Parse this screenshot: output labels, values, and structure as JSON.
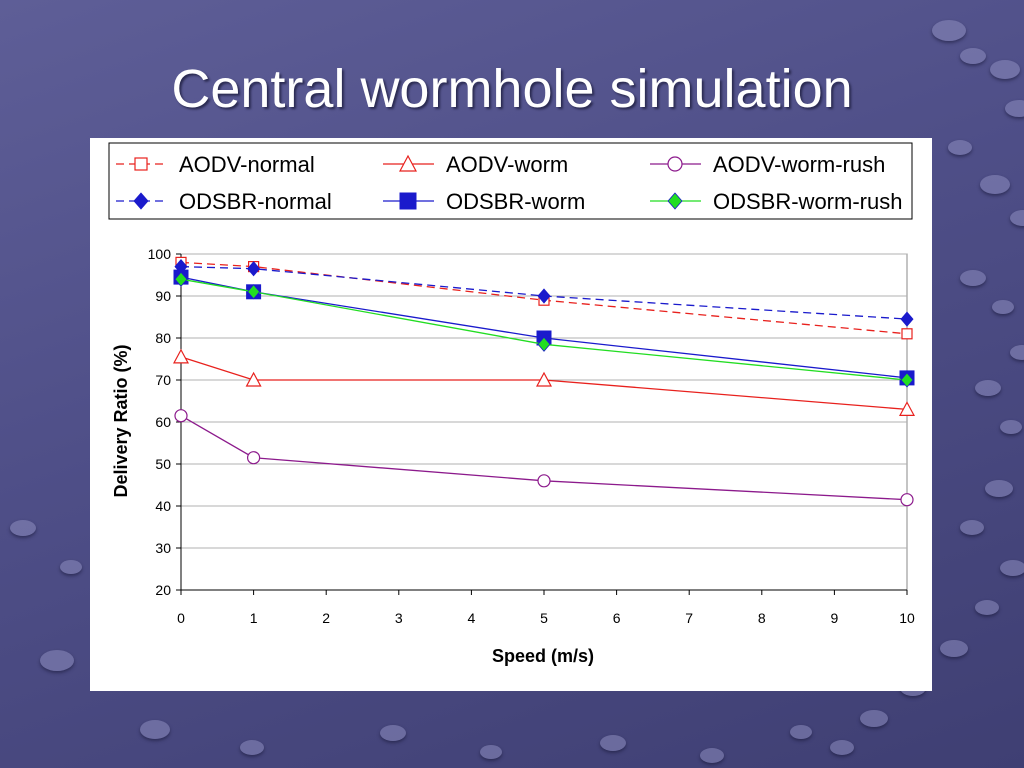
{
  "slide": {
    "title": "Central wormhole simulation"
  },
  "chart_data": {
    "type": "line",
    "title": "",
    "xlabel": "Speed (m/s)",
    "ylabel": "Delivery Ratio (%)",
    "xlim": [
      0,
      10
    ],
    "ylim": [
      20,
      100
    ],
    "xticks": [
      0,
      1,
      2,
      3,
      4,
      5,
      6,
      7,
      8,
      9,
      10
    ],
    "yticks": [
      20,
      30,
      40,
      50,
      60,
      70,
      80,
      90,
      100
    ],
    "grid": "horizontal",
    "legend_position": "top",
    "x": [
      0,
      1,
      5,
      10
    ],
    "series": [
      {
        "name": "AODV-normal",
        "values": [
          98,
          97,
          89,
          81
        ],
        "color": "#e8211d",
        "dash": "dashed",
        "marker": "square-open"
      },
      {
        "name": "AODV-worm",
        "values": [
          75.5,
          70,
          70,
          63
        ],
        "color": "#e8211d",
        "dash": "solid",
        "marker": "triangle-open"
      },
      {
        "name": "AODV-worm-rush",
        "values": [
          61.5,
          51.5,
          46,
          41.5
        ],
        "color": "#8c1a8c",
        "dash": "solid",
        "marker": "circle-open"
      },
      {
        "name": "ODSBR-normal",
        "values": [
          97,
          96.5,
          90,
          84.5
        ],
        "color": "#1a1acc",
        "dash": "dashed",
        "marker": "diamond-filled"
      },
      {
        "name": "ODSBR-worm",
        "values": [
          94.5,
          91,
          80,
          70.5
        ],
        "color": "#1a1acc",
        "dash": "solid",
        "marker": "square-filled"
      },
      {
        "name": "ODSBR-worm-rush",
        "values": [
          94,
          91,
          78.5,
          70
        ],
        "color": "#22dd22",
        "dash": "solid",
        "marker": "diamond-filled"
      }
    ]
  }
}
